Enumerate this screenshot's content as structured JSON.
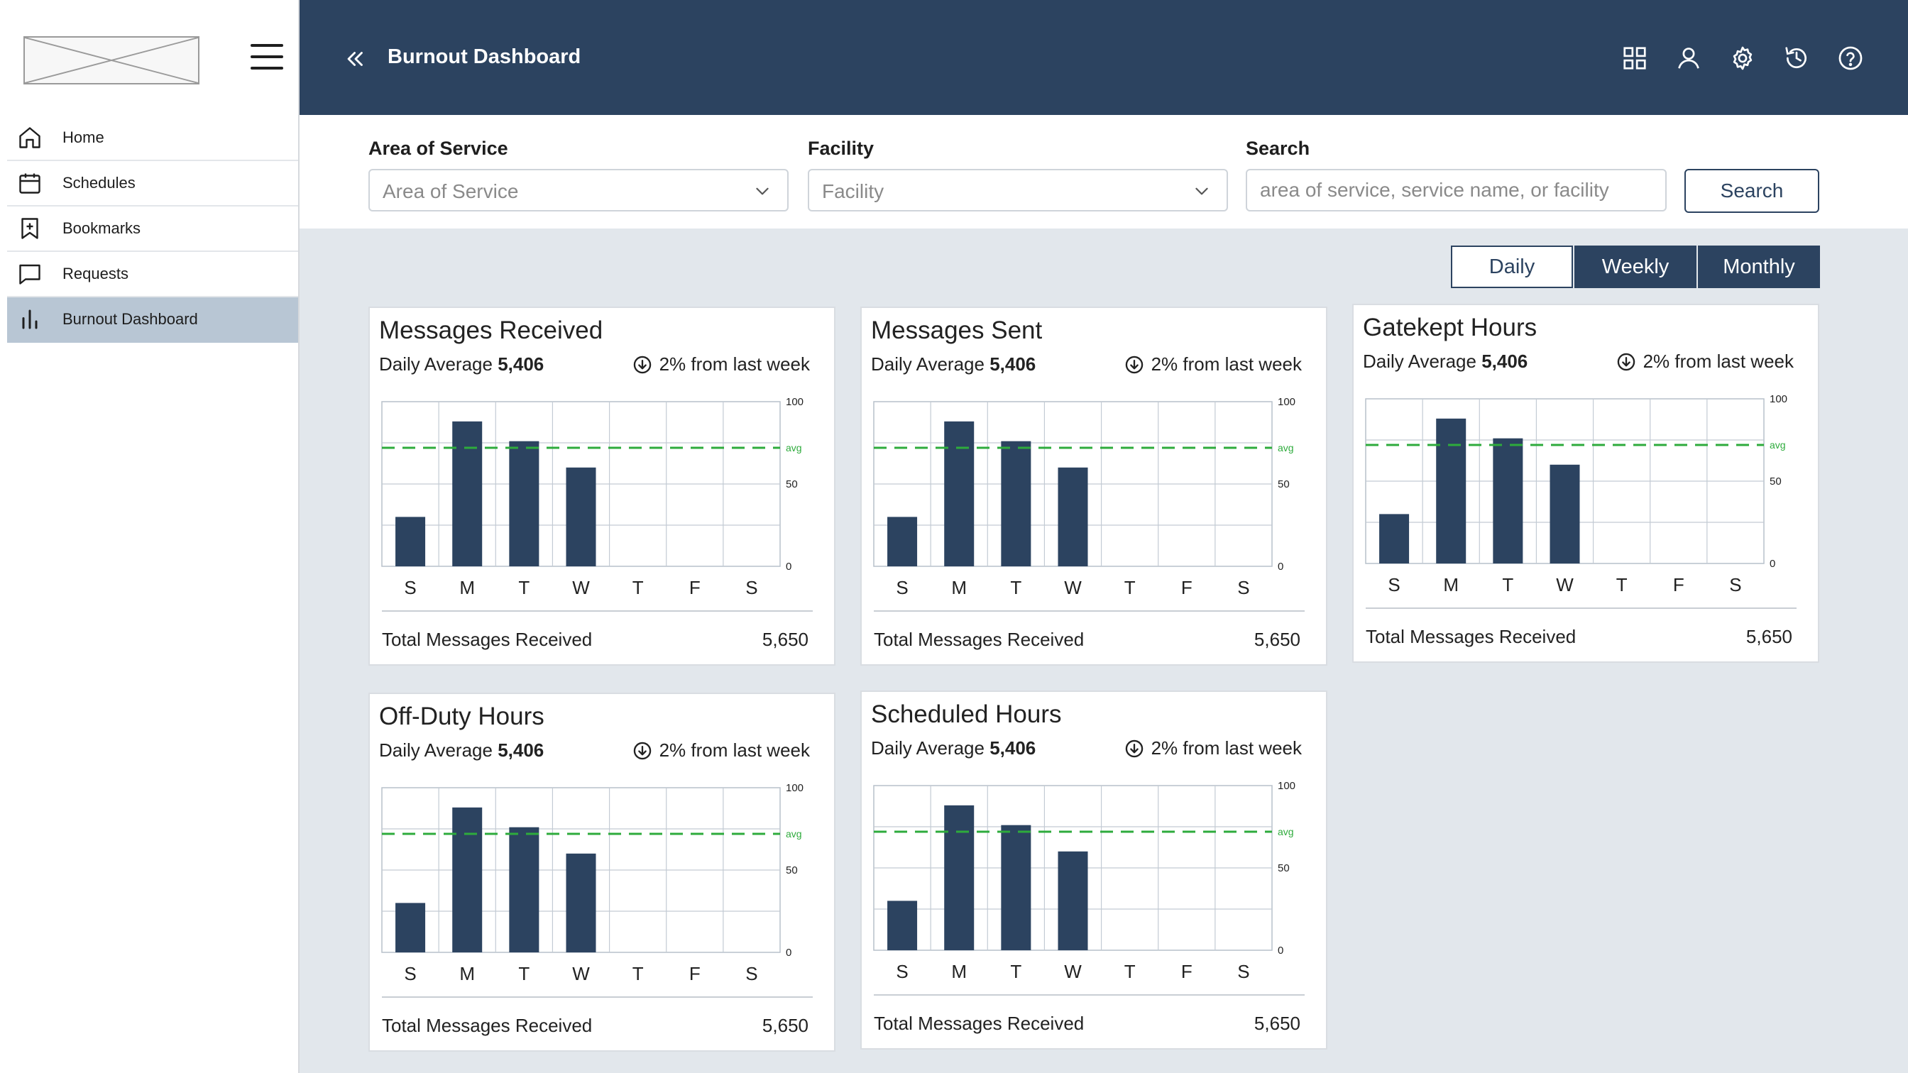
{
  "sidebar": {
    "items": [
      {
        "id": "home",
        "label": "Home",
        "icon": "home-icon",
        "active": false
      },
      {
        "id": "schedules",
        "label": "Schedules",
        "icon": "calendar-icon",
        "active": false
      },
      {
        "id": "bookmarks",
        "label": "Bookmarks",
        "icon": "bookmark-icon",
        "active": false
      },
      {
        "id": "requests",
        "label": "Requests",
        "icon": "chat-icon",
        "active": false
      },
      {
        "id": "burnout",
        "label": "Burnout Dashboard",
        "icon": "bar-chart-icon",
        "active": true
      }
    ]
  },
  "header": {
    "title": "Burnout Dashboard",
    "icons": [
      "grid-icon",
      "user-icon",
      "gear-icon",
      "history-icon",
      "help-icon"
    ]
  },
  "filters": {
    "area_label": "Area of Service",
    "area_value": "Area of Service",
    "facility_label": "Facility",
    "facility_value": "Facility",
    "search_label": "Search",
    "search_placeholder": "area of service, service name, or facility",
    "search_button": "Search"
  },
  "period": {
    "options": [
      "Daily",
      "Weekly",
      "Monthly"
    ],
    "selected": "Daily"
  },
  "colors": {
    "header": "#2c4360",
    "bar": "#2c4360",
    "avg_line": "#2eab3c",
    "active_nav": "#b8c6d4"
  },
  "cards": [
    {
      "title": "Messages Received",
      "avg_label": "Daily Average",
      "avg_value": "5,406",
      "trend": "2% from last week",
      "trend_icon": "arrow-down-circle-icon",
      "total_label": "Total Messages Received",
      "total_value": "5,650",
      "chart_data": {
        "type": "bar",
        "categories": [
          "S",
          "M",
          "T",
          "W",
          "T",
          "F",
          "S"
        ],
        "values": [
          30,
          88,
          76,
          60,
          null,
          null,
          null
        ],
        "avg": 72,
        "avg_label": "avg",
        "ylim": [
          0,
          100
        ],
        "yticks": [
          0,
          50,
          100
        ]
      }
    },
    {
      "title": "Messages Sent",
      "avg_label": "Daily Average",
      "avg_value": "5,406",
      "trend": "2% from last week",
      "trend_icon": "arrow-down-circle-icon",
      "total_label": "Total Messages Received",
      "total_value": "5,650",
      "chart_data": {
        "type": "bar",
        "categories": [
          "S",
          "M",
          "T",
          "W",
          "T",
          "F",
          "S"
        ],
        "values": [
          30,
          88,
          76,
          60,
          null,
          null,
          null
        ],
        "avg": 72,
        "avg_label": "avg",
        "ylim": [
          0,
          100
        ],
        "yticks": [
          0,
          50,
          100
        ]
      }
    },
    {
      "title": "Gatekept Hours",
      "avg_label": "Daily Average",
      "avg_value": "5,406",
      "trend": "2% from last week",
      "trend_icon": "arrow-down-circle-icon",
      "total_label": "Total Messages Received",
      "total_value": "5,650",
      "chart_data": {
        "type": "bar",
        "categories": [
          "S",
          "M",
          "T",
          "W",
          "T",
          "F",
          "S"
        ],
        "values": [
          30,
          88,
          76,
          60,
          null,
          null,
          null
        ],
        "avg": 72,
        "avg_label": "avg",
        "ylim": [
          0,
          100
        ],
        "yticks": [
          0,
          50,
          100
        ]
      }
    },
    {
      "title": "Off-Duty Hours",
      "avg_label": "Daily Average",
      "avg_value": "5,406",
      "trend": "2% from last week",
      "trend_icon": "arrow-down-circle-icon",
      "total_label": "Total Messages Received",
      "total_value": "5,650",
      "chart_data": {
        "type": "bar",
        "categories": [
          "S",
          "M",
          "T",
          "W",
          "T",
          "F",
          "S"
        ],
        "values": [
          30,
          88,
          76,
          60,
          null,
          null,
          null
        ],
        "avg": 72,
        "avg_label": "avg",
        "ylim": [
          0,
          100
        ],
        "yticks": [
          0,
          50,
          100
        ]
      }
    },
    {
      "title": "Scheduled Hours",
      "avg_label": "Daily Average",
      "avg_value": "5,406",
      "trend": "2% from last week",
      "trend_icon": "arrow-down-circle-icon",
      "total_label": "Total Messages Received",
      "total_value": "5,650",
      "chart_data": {
        "type": "bar",
        "categories": [
          "S",
          "M",
          "T",
          "W",
          "T",
          "F",
          "S"
        ],
        "values": [
          30,
          88,
          76,
          60,
          null,
          null,
          null
        ],
        "avg": 72,
        "avg_label": "avg",
        "ylim": [
          0,
          100
        ],
        "yticks": [
          0,
          50,
          100
        ]
      }
    }
  ]
}
